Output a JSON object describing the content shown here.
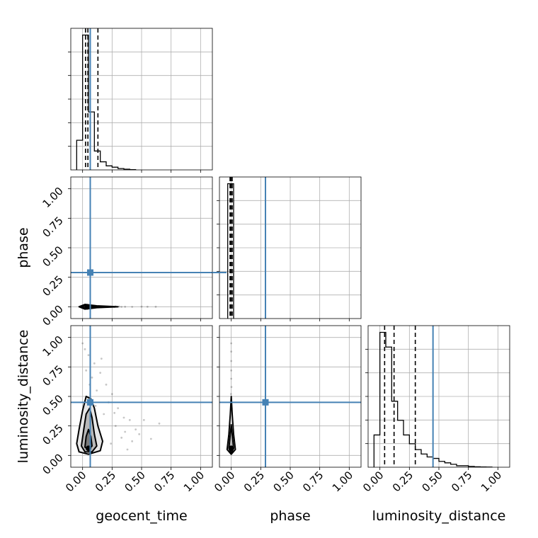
{
  "chart_data": {
    "type": "corner",
    "parameters": [
      "geocent_time",
      "phase",
      "luminosity_distance"
    ],
    "axis_labels": [
      "geocent_time",
      "phase",
      "luminosity_distance"
    ],
    "range": [
      -0.1,
      1.1
    ],
    "tick_labels": [
      "0.00",
      "0.25",
      "0.50",
      "0.75",
      "1.00"
    ],
    "tick_values": [
      0,
      0.25,
      0.5,
      0.75,
      1.0
    ],
    "grid": true,
    "truths": [
      0.065,
      0.29,
      0.45
    ],
    "truth_color": "#4682b4",
    "quantile_color": "#000000",
    "histograms": [
      {
        "parameter": "geocent_time",
        "bin_edges": [
          -0.05,
          0.0,
          0.05,
          0.1,
          0.15,
          0.2,
          0.25,
          0.3,
          0.35,
          0.4,
          0.45
        ],
        "counts": [
          0.22,
          1.0,
          0.43,
          0.14,
          0.06,
          0.03,
          0.02,
          0.01,
          0.005,
          0.002
        ],
        "quantiles": [
          0.025,
          0.045,
          0.13
        ]
      },
      {
        "parameter": "phase",
        "bin_edges": [
          -0.03,
          0.02
        ],
        "counts": [
          1.0
        ],
        "quantiles": [
          -0.01,
          -0.002,
          0.008
        ]
      },
      {
        "parameter": "luminosity_distance",
        "bin_edges": [
          -0.05,
          0.0,
          0.05,
          0.1,
          0.15,
          0.2,
          0.25,
          0.3,
          0.35,
          0.4,
          0.45,
          0.5,
          0.55,
          0.6,
          0.65,
          0.7,
          0.75,
          0.8,
          0.85,
          0.9,
          0.95
        ],
        "counts": [
          0.22,
          0.92,
          0.82,
          0.45,
          0.32,
          0.22,
          0.16,
          0.12,
          0.09,
          0.07,
          0.06,
          0.04,
          0.03,
          0.02,
          0.01,
          0.01,
          0.005,
          0.003,
          0.002,
          0.001
        ],
        "quantiles": [
          0.04,
          0.12,
          0.3
        ]
      }
    ],
    "panels_2d": [
      {
        "x": "geocent_time",
        "y": "phase",
        "center": [
          0.04,
          0.0
        ],
        "scatter": [
          [
            0.1,
            0.004
          ],
          [
            0.14,
            -0.003
          ],
          [
            0.18,
            0.002
          ],
          [
            0.21,
            -0.002
          ],
          [
            0.24,
            0.001
          ],
          [
            0.27,
            -0.002
          ],
          [
            0.31,
            0.002
          ],
          [
            0.36,
            0.0
          ],
          [
            0.42,
            -0.001
          ],
          [
            0.5,
            0.001
          ],
          [
            0.55,
            0.0
          ],
          [
            0.62,
            0.0
          ],
          [
            0.12,
            0.002
          ],
          [
            0.16,
            -0.004
          ],
          [
            0.28,
            0.003
          ],
          [
            0.33,
            -0.001
          ]
        ],
        "contours": [
          [
            [
              -0.03,
              0.0
            ],
            [
              0.02,
              0.02
            ],
            [
              0.12,
              0.008
            ],
            [
              0.3,
              0.0
            ],
            [
              0.12,
              -0.008
            ],
            [
              0.02,
              -0.02
            ]
          ],
          [
            [
              -0.01,
              0.0
            ],
            [
              0.03,
              0.012
            ],
            [
              0.09,
              0.004
            ],
            [
              0.2,
              0.0
            ],
            [
              0.09,
              -0.004
            ],
            [
              0.03,
              -0.012
            ]
          ]
        ]
      },
      {
        "x": "geocent_time",
        "y": "luminosity_distance",
        "center": [
          0.05,
          0.06
        ],
        "scatter": [
          [
            0.0,
            0.95
          ],
          [
            0.02,
            0.9
          ],
          [
            0.05,
            0.85
          ],
          [
            0.1,
            0.78
          ],
          [
            0.15,
            0.7
          ],
          [
            0.08,
            0.66
          ],
          [
            0.2,
            0.6
          ],
          [
            0.25,
            0.52
          ],
          [
            0.3,
            0.4
          ],
          [
            0.35,
            0.32
          ],
          [
            0.4,
            0.3
          ],
          [
            0.45,
            0.22
          ],
          [
            0.48,
            0.18
          ],
          [
            0.52,
            0.3
          ],
          [
            0.65,
            0.27
          ],
          [
            0.58,
            0.14
          ],
          [
            0.22,
            0.45
          ],
          [
            0.18,
            0.35
          ],
          [
            0.12,
            0.55
          ],
          [
            0.03,
            0.72
          ],
          [
            0.28,
            0.25
          ],
          [
            0.33,
            0.15
          ],
          [
            0.24,
            0.1
          ],
          [
            0.38,
            0.05
          ],
          [
            0.16,
            0.82
          ],
          [
            0.06,
            0.6
          ],
          [
            0.11,
            0.42
          ],
          [
            0.27,
            0.36
          ],
          [
            0.42,
            0.12
          ],
          [
            0.36,
            0.2
          ]
        ],
        "contours": [
          [
            [
              -0.05,
              0.1
            ],
            [
              -0.03,
              0.22
            ],
            [
              0.0,
              0.38
            ],
            [
              0.03,
              0.5
            ],
            [
              0.07,
              0.48
            ],
            [
              0.1,
              0.4
            ],
            [
              0.13,
              0.25
            ],
            [
              0.17,
              0.12
            ],
            [
              0.15,
              0.04
            ],
            [
              0.05,
              0.01
            ],
            [
              -0.03,
              0.03
            ]
          ],
          [
            [
              -0.01,
              0.08
            ],
            [
              0.01,
              0.22
            ],
            [
              0.03,
              0.35
            ],
            [
              0.06,
              0.4
            ],
            [
              0.08,
              0.32
            ],
            [
              0.1,
              0.18
            ],
            [
              0.12,
              0.08
            ],
            [
              0.08,
              0.03
            ],
            [
              0.02,
              0.03
            ]
          ],
          [
            [
              0.02,
              0.07
            ],
            [
              0.03,
              0.16
            ],
            [
              0.05,
              0.22
            ],
            [
              0.07,
              0.16
            ],
            [
              0.08,
              0.08
            ],
            [
              0.05,
              0.05
            ]
          ]
        ]
      },
      {
        "x": "phase",
        "y": "luminosity_distance",
        "center": [
          0.0,
          0.06
        ],
        "scatter": [
          [
            0.0,
            0.95
          ],
          [
            0.0,
            0.88
          ],
          [
            0.0,
            0.8
          ],
          [
            0.0,
            0.72
          ],
          [
            0.0,
            0.65
          ],
          [
            0.002,
            0.58
          ],
          [
            -0.002,
            0.52
          ],
          [
            0.0,
            0.46
          ],
          [
            0.004,
            0.4
          ],
          [
            -0.004,
            0.35
          ],
          [
            0.0,
            0.3
          ]
        ],
        "contours": [
          [
            [
              -0.035,
              0.05
            ],
            [
              -0.02,
              0.18
            ],
            [
              -0.008,
              0.35
            ],
            [
              0.0,
              0.5
            ],
            [
              0.008,
              0.35
            ],
            [
              0.02,
              0.18
            ],
            [
              0.035,
              0.05
            ],
            [
              0.0,
              0.01
            ]
          ],
          [
            [
              -0.02,
              0.06
            ],
            [
              -0.01,
              0.16
            ],
            [
              0.0,
              0.26
            ],
            [
              0.01,
              0.16
            ],
            [
              0.02,
              0.06
            ],
            [
              0.0,
              0.02
            ]
          ]
        ]
      }
    ]
  }
}
